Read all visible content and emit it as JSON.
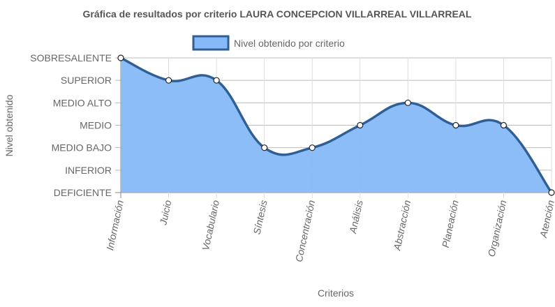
{
  "chart_data": {
    "type": "area",
    "title": "Gráfica de resultados por criterio LAURA CONCEPCION VILLARREAL VILLARREAL",
    "xlabel": "Criterios",
    "ylabel": "Nivel obtenido",
    "categories": [
      "Información",
      "Juicio",
      "Vocabulario",
      "Síntesis",
      "Concentración",
      "Análisis",
      "Abstracción",
      "Planeación",
      "Organización",
      "Atención"
    ],
    "y_levels": [
      "DEFICIENTE",
      "INFERIOR",
      "MEDIO BAJO",
      "MEDIO",
      "MEDIO ALTO",
      "SUPERIOR",
      "SOBRESALIENTE"
    ],
    "ylim": [
      0,
      6
    ],
    "grid": true,
    "legend_position": "top",
    "series": [
      {
        "name": "Nivel obtenido por criterio",
        "values": [
          6,
          5,
          5,
          2,
          2,
          3,
          4,
          3,
          3,
          0
        ]
      }
    ],
    "colors": {
      "fill": "#86b9f7",
      "line": "#2f5f94",
      "grid": "#bbbbbb",
      "text": "#666666",
      "title": "#555555"
    }
  }
}
